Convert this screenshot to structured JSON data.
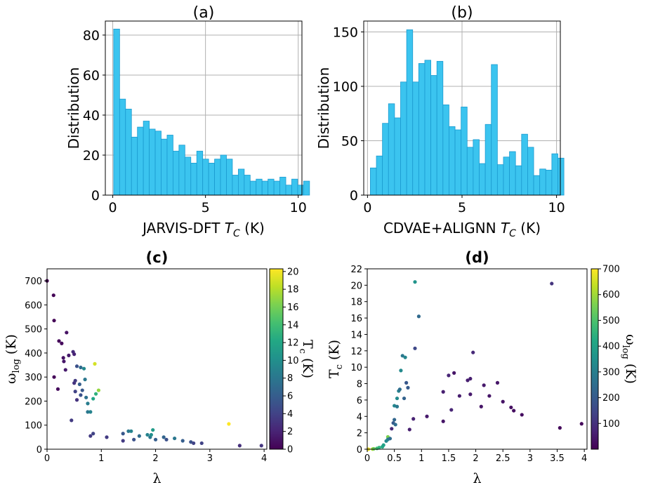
{
  "chart_data": [
    {
      "id": "a",
      "type": "bar",
      "title": "(a)",
      "xlabel": "JARVIS-DFT T_C (K)",
      "xlabel_main": "JARVIS-DFT ",
      "xlabel_sym": "T",
      "xlabel_sub": "C",
      "xlabel_unit": " (K)",
      "ylabel": "Distribution",
      "xlim": [
        -0.4,
        10.2
      ],
      "ylim": [
        0,
        87
      ],
      "xticks": [
        0,
        5,
        10
      ],
      "yticks": [
        0,
        20,
        40,
        60,
        80
      ],
      "bin_start": 0.05,
      "bin_width": 0.32,
      "values": [
        83,
        48,
        43,
        29,
        34,
        37,
        33,
        32,
        28,
        30,
        22,
        25,
        19,
        16,
        22,
        18,
        16,
        18,
        20,
        18,
        10,
        13,
        10,
        7,
        8,
        7,
        8,
        7,
        9,
        5,
        8,
        5,
        7
      ],
      "color": "#3bc4ef",
      "grid": true
    },
    {
      "id": "b",
      "type": "bar",
      "title": "(b)",
      "xlabel": "CDVAE+ALIGNN T_C (K)",
      "xlabel_main": "CDVAE+ALIGNN ",
      "xlabel_sym": "T",
      "xlabel_sub": "C",
      "xlabel_unit": " (K)",
      "ylabel": "Distribution",
      "xlim": [
        -0.2,
        10.2
      ],
      "ylim": [
        0,
        160
      ],
      "xticks": [
        0,
        5,
        10
      ],
      "yticks": [
        0,
        50,
        100,
        150
      ],
      "bin_start": 0.15,
      "bin_width": 0.32,
      "values": [
        25,
        36,
        66,
        84,
        71,
        104,
        152,
        104,
        121,
        124,
        110,
        123,
        83,
        63,
        60,
        81,
        44,
        51,
        29,
        65,
        120,
        28,
        35,
        40,
        27,
        56,
        44,
        18,
        24,
        23,
        38,
        34
      ],
      "color": "#3bc4ef",
      "grid": true
    },
    {
      "id": "c",
      "type": "scatter",
      "title": "(c)",
      "xlabel": "λ",
      "ylabel": "ω_log (K)",
      "ylabel_main": "ω",
      "ylabel_sub": "log",
      "ylabel_unit": " (K)",
      "xlim": [
        0,
        4.05
      ],
      "ylim": [
        0,
        750
      ],
      "xticks": [
        0,
        1,
        2,
        3,
        4
      ],
      "yticks": [
        0,
        100,
        200,
        300,
        400,
        500,
        600,
        700
      ],
      "colorbar": {
        "label": "T_c (K)",
        "label_main": "T",
        "label_sub": "c",
        "label_unit": " (K)",
        "min": 0,
        "max": 20.3,
        "ticks": [
          0,
          2,
          4,
          6,
          8,
          10,
          12,
          14,
          16,
          18,
          20
        ]
      },
      "points": [
        {
          "x": 0.0,
          "y": 700,
          "c": 0.0
        },
        {
          "x": 0.12,
          "y": 640,
          "c": 0.1
        },
        {
          "x": 0.13,
          "y": 535,
          "c": 0.1
        },
        {
          "x": 0.13,
          "y": 300,
          "c": 0.3
        },
        {
          "x": 0.2,
          "y": 250,
          "c": 0.5
        },
        {
          "x": 0.22,
          "y": 450,
          "c": 0.3
        },
        {
          "x": 0.27,
          "y": 440,
          "c": 0.5
        },
        {
          "x": 0.3,
          "y": 380,
          "c": 1.0
        },
        {
          "x": 0.31,
          "y": 365,
          "c": 1.2
        },
        {
          "x": 0.34,
          "y": 330,
          "c": 1.5
        },
        {
          "x": 0.36,
          "y": 485,
          "c": 1.0
        },
        {
          "x": 0.4,
          "y": 390,
          "c": 1.5
        },
        {
          "x": 0.45,
          "y": 120,
          "c": 3.5
        },
        {
          "x": 0.48,
          "y": 405,
          "c": 2.5
        },
        {
          "x": 0.5,
          "y": 395,
          "c": 2.0
        },
        {
          "x": 0.5,
          "y": 275,
          "c": 3.0
        },
        {
          "x": 0.52,
          "y": 285,
          "c": 3.5
        },
        {
          "x": 0.52,
          "y": 240,
          "c": 4.0
        },
        {
          "x": 0.55,
          "y": 345,
          "c": 5.0
        },
        {
          "x": 0.55,
          "y": 205,
          "c": 3.0
        },
        {
          "x": 0.6,
          "y": 270,
          "c": 6.0
        },
        {
          "x": 0.62,
          "y": 340,
          "c": 7.0
        },
        {
          "x": 0.62,
          "y": 225,
          "c": 5.0
        },
        {
          "x": 0.65,
          "y": 245,
          "c": 5.5
        },
        {
          "x": 0.68,
          "y": 335,
          "c": 9.5
        },
        {
          "x": 0.7,
          "y": 290,
          "c": 8.0
        },
        {
          "x": 0.72,
          "y": 215,
          "c": 7.5
        },
        {
          "x": 0.75,
          "y": 190,
          "c": 8.5
        },
        {
          "x": 0.75,
          "y": 155,
          "c": 8.0
        },
        {
          "x": 0.8,
          "y": 55,
          "c": 3.5
        },
        {
          "x": 0.8,
          "y": 155,
          "c": 9.0
        },
        {
          "x": 0.85,
          "y": 65,
          "c": 4.0
        },
        {
          "x": 0.85,
          "y": 210,
          "c": 12.0
        },
        {
          "x": 0.88,
          "y": 355,
          "c": 19.0
        },
        {
          "x": 0.9,
          "y": 230,
          "c": 13.0
        },
        {
          "x": 0.95,
          "y": 245,
          "c": 17.0
        },
        {
          "x": 1.1,
          "y": 50,
          "c": 3.5
        },
        {
          "x": 1.4,
          "y": 65,
          "c": 5.5
        },
        {
          "x": 1.4,
          "y": 35,
          "c": 3.5
        },
        {
          "x": 1.5,
          "y": 75,
          "c": 8.0
        },
        {
          "x": 1.55,
          "y": 75,
          "c": 9.0
        },
        {
          "x": 1.6,
          "y": 40,
          "c": 5.0
        },
        {
          "x": 1.7,
          "y": 55,
          "c": 7.0
        },
        {
          "x": 1.85,
          "y": 60,
          "c": 9.0
        },
        {
          "x": 1.9,
          "y": 50,
          "c": 8.0
        },
        {
          "x": 1.92,
          "y": 60,
          "c": 10.0
        },
        {
          "x": 1.95,
          "y": 80,
          "c": 11.0
        },
        {
          "x": 2.0,
          "y": 40,
          "c": 6.0
        },
        {
          "x": 2.15,
          "y": 50,
          "c": 6.5
        },
        {
          "x": 2.2,
          "y": 40,
          "c": 5.0
        },
        {
          "x": 2.35,
          "y": 45,
          "c": 8.0
        },
        {
          "x": 2.5,
          "y": 35,
          "c": 6.0
        },
        {
          "x": 2.65,
          "y": 30,
          "c": 5.0
        },
        {
          "x": 2.7,
          "y": 25,
          "c": 4.0
        },
        {
          "x": 2.85,
          "y": 25,
          "c": 4.0
        },
        {
          "x": 3.35,
          "y": 105,
          "c": 20.3
        },
        {
          "x": 3.55,
          "y": 15,
          "c": 2.8
        },
        {
          "x": 3.95,
          "y": 15,
          "c": 3.2
        }
      ]
    },
    {
      "id": "d",
      "type": "scatter",
      "title": "(d)",
      "xlabel": "λ",
      "ylabel": "T_c (K)",
      "ylabel_main": "T",
      "ylabel_sub": "c",
      "ylabel_unit": " (K)",
      "xlim": [
        0,
        4.05
      ],
      "ylim": [
        0,
        22
      ],
      "xticks": [
        0,
        0.5,
        1,
        1.5,
        2,
        2.5,
        3,
        3.5,
        4
      ],
      "yticks": [
        0,
        2,
        4,
        6,
        8,
        10,
        12,
        14,
        16,
        18,
        20,
        22
      ],
      "colorbar": {
        "label": "ω_log (K)",
        "label_main": "ω",
        "label_sub": "log",
        "label_unit": " (K)",
        "min": 0,
        "max": 700,
        "ticks": [
          100,
          200,
          300,
          400,
          500,
          600,
          700
        ]
      },
      "points": [
        {
          "x": 0.02,
          "y": 0.0,
          "c": 690
        },
        {
          "x": 0.1,
          "y": 0.02,
          "c": 620
        },
        {
          "x": 0.12,
          "y": 0.05,
          "c": 540
        },
        {
          "x": 0.18,
          "y": 0.1,
          "c": 480
        },
        {
          "x": 0.22,
          "y": 0.2,
          "c": 450
        },
        {
          "x": 0.28,
          "y": 0.3,
          "c": 420
        },
        {
          "x": 0.3,
          "y": 0.5,
          "c": 400
        },
        {
          "x": 0.35,
          "y": 1.0,
          "c": 330
        },
        {
          "x": 0.38,
          "y": 1.5,
          "c": 560
        },
        {
          "x": 0.38,
          "y": 1.2,
          "c": 300
        },
        {
          "x": 0.42,
          "y": 1.3,
          "c": 250
        },
        {
          "x": 0.45,
          "y": 2.5,
          "c": 80
        },
        {
          "x": 0.48,
          "y": 3.2,
          "c": 200
        },
        {
          "x": 0.5,
          "y": 3.6,
          "c": 230
        },
        {
          "x": 0.5,
          "y": 5.3,
          "c": 320
        },
        {
          "x": 0.52,
          "y": 3.0,
          "c": 250
        },
        {
          "x": 0.55,
          "y": 6.2,
          "c": 330
        },
        {
          "x": 0.55,
          "y": 5.2,
          "c": 280
        },
        {
          "x": 0.58,
          "y": 7.1,
          "c": 300
        },
        {
          "x": 0.6,
          "y": 7.3,
          "c": 250
        },
        {
          "x": 0.62,
          "y": 9.6,
          "c": 330
        },
        {
          "x": 0.65,
          "y": 11.4,
          "c": 280
        },
        {
          "x": 0.68,
          "y": 6.2,
          "c": 220
        },
        {
          "x": 0.7,
          "y": 11.2,
          "c": 320
        },
        {
          "x": 0.72,
          "y": 8.1,
          "c": 190
        },
        {
          "x": 0.75,
          "y": 7.5,
          "c": 200
        },
        {
          "x": 0.78,
          "y": 2.4,
          "c": 60
        },
        {
          "x": 0.85,
          "y": 3.7,
          "c": 65
        },
        {
          "x": 0.88,
          "y": 12.3,
          "c": 150
        },
        {
          "x": 0.88,
          "y": 20.4,
          "c": 360
        },
        {
          "x": 0.95,
          "y": 16.2,
          "c": 240
        },
        {
          "x": 1.1,
          "y": 4.0,
          "c": 50
        },
        {
          "x": 1.4,
          "y": 7.0,
          "c": 60
        },
        {
          "x": 1.4,
          "y": 3.4,
          "c": 40
        },
        {
          "x": 1.5,
          "y": 9.0,
          "c": 75
        },
        {
          "x": 1.55,
          "y": 4.8,
          "c": 75
        },
        {
          "x": 1.6,
          "y": 9.3,
          "c": 40
        },
        {
          "x": 1.7,
          "y": 6.5,
          "c": 55
        },
        {
          "x": 1.85,
          "y": 8.4,
          "c": 60
        },
        {
          "x": 1.9,
          "y": 6.7,
          "c": 50
        },
        {
          "x": 1.95,
          "y": 11.8,
          "c": 80
        },
        {
          "x": 1.9,
          "y": 8.6,
          "c": 60
        },
        {
          "x": 2.1,
          "y": 5.2,
          "c": 40
        },
        {
          "x": 2.15,
          "y": 7.8,
          "c": 50
        },
        {
          "x": 2.25,
          "y": 6.5,
          "c": 40
        },
        {
          "x": 2.4,
          "y": 8.1,
          "c": 45
        },
        {
          "x": 2.5,
          "y": 5.8,
          "c": 35
        },
        {
          "x": 2.65,
          "y": 5.1,
          "c": 30
        },
        {
          "x": 2.7,
          "y": 4.7,
          "c": 25
        },
        {
          "x": 2.85,
          "y": 4.2,
          "c": 25
        },
        {
          "x": 3.4,
          "y": 20.2,
          "c": 105
        },
        {
          "x": 3.55,
          "y": 2.6,
          "c": 15
        },
        {
          "x": 3.95,
          "y": 3.1,
          "c": 15
        }
      ]
    }
  ]
}
